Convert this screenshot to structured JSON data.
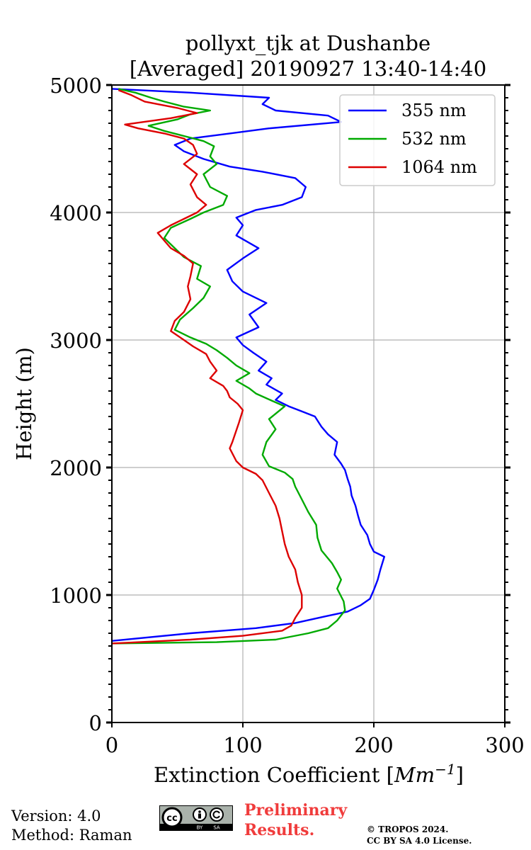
{
  "chart_data": {
    "type": "line",
    "title_line1": "pollyxt_tjk at Dushanbe",
    "title_line2": "[Averaged] 20190927 13:40-14:40",
    "xlabel": "Extinction Coefficient [",
    "xlabel_unit": "Mm",
    "xlabel_exp": "−1",
    "xlabel_end": "]",
    "ylabel": "Height (m)",
    "xlim": [
      0,
      300
    ],
    "ylim": [
      0,
      5000
    ],
    "xticks": [
      0,
      100,
      200,
      300
    ],
    "yticks": [
      0,
      1000,
      2000,
      3000,
      4000,
      5000
    ],
    "xtick_labels": [
      "0",
      "100",
      "200",
      "300"
    ],
    "ytick_labels": [
      "0",
      "1000",
      "2000",
      "3000",
      "4000",
      "5000"
    ],
    "grid": true,
    "legend_position": "top-right",
    "series": [
      {
        "name": "355 nm",
        "color": "#0000ff",
        "points": [
          [
            0,
            640
          ],
          [
            60,
            700
          ],
          [
            110,
            740
          ],
          [
            140,
            780
          ],
          [
            162,
            830
          ],
          [
            180,
            870
          ],
          [
            190,
            920
          ],
          [
            197,
            970
          ],
          [
            200,
            1040
          ],
          [
            203,
            1120
          ],
          [
            205,
            1200
          ],
          [
            208,
            1300
          ],
          [
            200,
            1340
          ],
          [
            197,
            1400
          ],
          [
            195,
            1470
          ],
          [
            190,
            1550
          ],
          [
            188,
            1620
          ],
          [
            186,
            1700
          ],
          [
            183,
            1780
          ],
          [
            182,
            1850
          ],
          [
            180,
            1910
          ],
          [
            178,
            1980
          ],
          [
            175,
            2030
          ],
          [
            170,
            2100
          ],
          [
            172,
            2200
          ],
          [
            165,
            2260
          ],
          [
            160,
            2320
          ],
          [
            155,
            2400
          ],
          [
            145,
            2440
          ],
          [
            135,
            2480
          ],
          [
            125,
            2530
          ],
          [
            130,
            2580
          ],
          [
            118,
            2650
          ],
          [
            122,
            2700
          ],
          [
            112,
            2760
          ],
          [
            118,
            2830
          ],
          [
            108,
            2900
          ],
          [
            100,
            2960
          ],
          [
            95,
            3020
          ],
          [
            112,
            3100
          ],
          [
            105,
            3200
          ],
          [
            118,
            3290
          ],
          [
            100,
            3380
          ],
          [
            92,
            3460
          ],
          [
            88,
            3550
          ],
          [
            100,
            3640
          ],
          [
            112,
            3720
          ],
          [
            95,
            3820
          ],
          [
            100,
            3900
          ],
          [
            95,
            3960
          ],
          [
            110,
            4020
          ],
          [
            130,
            4060
          ],
          [
            145,
            4120
          ],
          [
            148,
            4200
          ],
          [
            140,
            4270
          ],
          [
            115,
            4320
          ],
          [
            90,
            4360
          ],
          [
            70,
            4420
          ],
          [
            55,
            4480
          ],
          [
            48,
            4530
          ],
          [
            60,
            4580
          ],
          [
            90,
            4620
          ],
          [
            120,
            4660
          ],
          [
            175,
            4710
          ],
          [
            165,
            4760
          ],
          [
            125,
            4800
          ],
          [
            115,
            4850
          ],
          [
            120,
            4900
          ],
          [
            60,
            4940
          ],
          [
            20,
            4960
          ],
          [
            0,
            4970
          ]
        ]
      },
      {
        "name": "532 nm",
        "color": "#00aa00",
        "points": [
          [
            0,
            620
          ],
          [
            80,
            630
          ],
          [
            125,
            650
          ],
          [
            150,
            700
          ],
          [
            165,
            740
          ],
          [
            172,
            800
          ],
          [
            178,
            880
          ],
          [
            177,
            950
          ],
          [
            172,
            1050
          ],
          [
            175,
            1120
          ],
          [
            172,
            1180
          ],
          [
            168,
            1250
          ],
          [
            160,
            1350
          ],
          [
            157,
            1450
          ],
          [
            156,
            1550
          ],
          [
            150,
            1650
          ],
          [
            145,
            1750
          ],
          [
            140,
            1850
          ],
          [
            138,
            1910
          ],
          [
            132,
            1960
          ],
          [
            120,
            2010
          ],
          [
            115,
            2100
          ],
          [
            118,
            2200
          ],
          [
            125,
            2300
          ],
          [
            120,
            2380
          ],
          [
            132,
            2480
          ],
          [
            123,
            2520
          ],
          [
            110,
            2580
          ],
          [
            105,
            2620
          ],
          [
            95,
            2680
          ],
          [
            105,
            2740
          ],
          [
            95,
            2800
          ],
          [
            88,
            2860
          ],
          [
            80,
            2920
          ],
          [
            72,
            2970
          ],
          [
            60,
            3020
          ],
          [
            48,
            3080
          ],
          [
            52,
            3160
          ],
          [
            62,
            3250
          ],
          [
            70,
            3330
          ],
          [
            75,
            3420
          ],
          [
            65,
            3480
          ],
          [
            68,
            3580
          ],
          [
            55,
            3650
          ],
          [
            48,
            3720
          ],
          [
            40,
            3800
          ],
          [
            45,
            3880
          ],
          [
            60,
            3950
          ],
          [
            70,
            4000
          ],
          [
            85,
            4060
          ],
          [
            88,
            4130
          ],
          [
            75,
            4200
          ],
          [
            70,
            4300
          ],
          [
            80,
            4380
          ],
          [
            75,
            4440
          ],
          [
            78,
            4520
          ],
          [
            70,
            4560
          ],
          [
            55,
            4600
          ],
          [
            40,
            4640
          ],
          [
            28,
            4680
          ],
          [
            50,
            4730
          ],
          [
            60,
            4770
          ],
          [
            75,
            4800
          ],
          [
            55,
            4830
          ],
          [
            40,
            4870
          ],
          [
            30,
            4900
          ],
          [
            18,
            4940
          ],
          [
            5,
            4970
          ]
        ]
      },
      {
        "name": "1064 nm",
        "color": "#dd0000",
        "points": [
          [
            0,
            620
          ],
          [
            60,
            650
          ],
          [
            100,
            680
          ],
          [
            130,
            720
          ],
          [
            137,
            760
          ],
          [
            140,
            820
          ],
          [
            145,
            900
          ],
          [
            145,
            1000
          ],
          [
            142,
            1100
          ],
          [
            140,
            1200
          ],
          [
            135,
            1300
          ],
          [
            132,
            1400
          ],
          [
            130,
            1500
          ],
          [
            128,
            1600
          ],
          [
            125,
            1700
          ],
          [
            120,
            1800
          ],
          [
            115,
            1900
          ],
          [
            110,
            1950
          ],
          [
            100,
            2000
          ],
          [
            95,
            2050
          ],
          [
            90,
            2150
          ],
          [
            92,
            2200
          ],
          [
            97,
            2350
          ],
          [
            100,
            2450
          ],
          [
            96,
            2500
          ],
          [
            90,
            2550
          ],
          [
            88,
            2600
          ],
          [
            85,
            2640
          ],
          [
            75,
            2700
          ],
          [
            80,
            2760
          ],
          [
            75,
            2830
          ],
          [
            72,
            2890
          ],
          [
            62,
            2950
          ],
          [
            55,
            3000
          ],
          [
            45,
            3070
          ],
          [
            48,
            3150
          ],
          [
            55,
            3220
          ],
          [
            60,
            3320
          ],
          [
            58,
            3420
          ],
          [
            60,
            3500
          ],
          [
            62,
            3600
          ],
          [
            55,
            3660
          ],
          [
            45,
            3720
          ],
          [
            40,
            3780
          ],
          [
            35,
            3840
          ],
          [
            45,
            3900
          ],
          [
            55,
            3950
          ],
          [
            65,
            4000
          ],
          [
            72,
            4060
          ],
          [
            65,
            4120
          ],
          [
            60,
            4220
          ],
          [
            65,
            4300
          ],
          [
            55,
            4380
          ],
          [
            65,
            4460
          ],
          [
            62,
            4530
          ],
          [
            55,
            4580
          ],
          [
            40,
            4620
          ],
          [
            20,
            4660
          ],
          [
            10,
            4690
          ],
          [
            45,
            4740
          ],
          [
            65,
            4780
          ],
          [
            50,
            4820
          ],
          [
            25,
            4870
          ],
          [
            15,
            4920
          ],
          [
            5,
            4960
          ]
        ]
      }
    ]
  },
  "footer": {
    "version": "Version: 4.0",
    "method": "Method: Raman",
    "preliminary_line1": "Preliminary",
    "preliminary_line2": "Results.",
    "copyright_line1": "© TROPOS 2024.",
    "copyright_line2": "CC BY SA 4.0 License.",
    "cc_badge": {
      "cc": "cc",
      "by": "BY",
      "sa": "SA"
    }
  }
}
